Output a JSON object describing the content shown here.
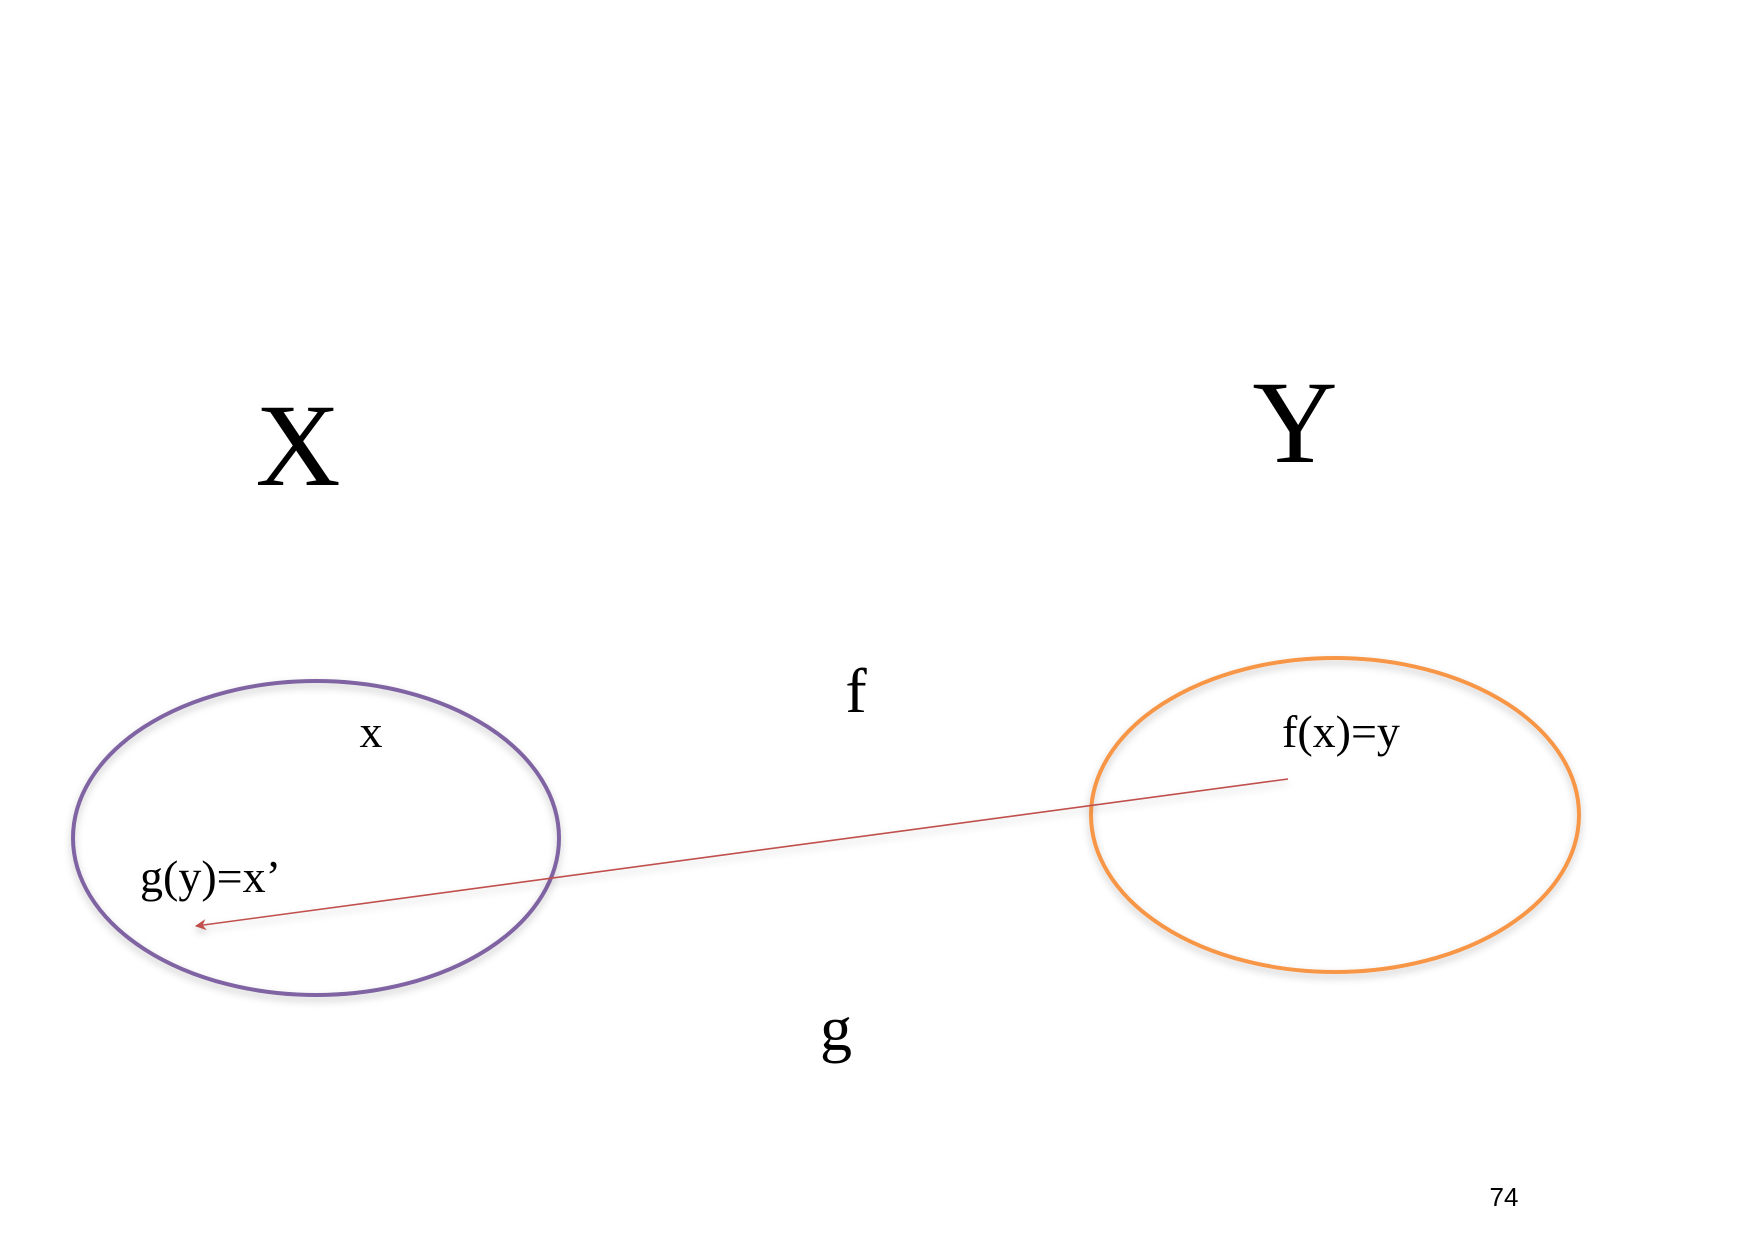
{
  "colors": {
    "domain_ellipse": "#8064A2",
    "codomain_ellipse": "#F79646",
    "arrow": "#C0504D",
    "text": "#000000"
  },
  "diagram": {
    "domain_label": "X",
    "codomain_label": "Y",
    "forward_map_label": "f",
    "inverse_map_label": "g",
    "element_x": "x",
    "element_fx": "f(x)=y",
    "element_gy": "g(y)=x’"
  },
  "footer": {
    "page_number": "74"
  }
}
